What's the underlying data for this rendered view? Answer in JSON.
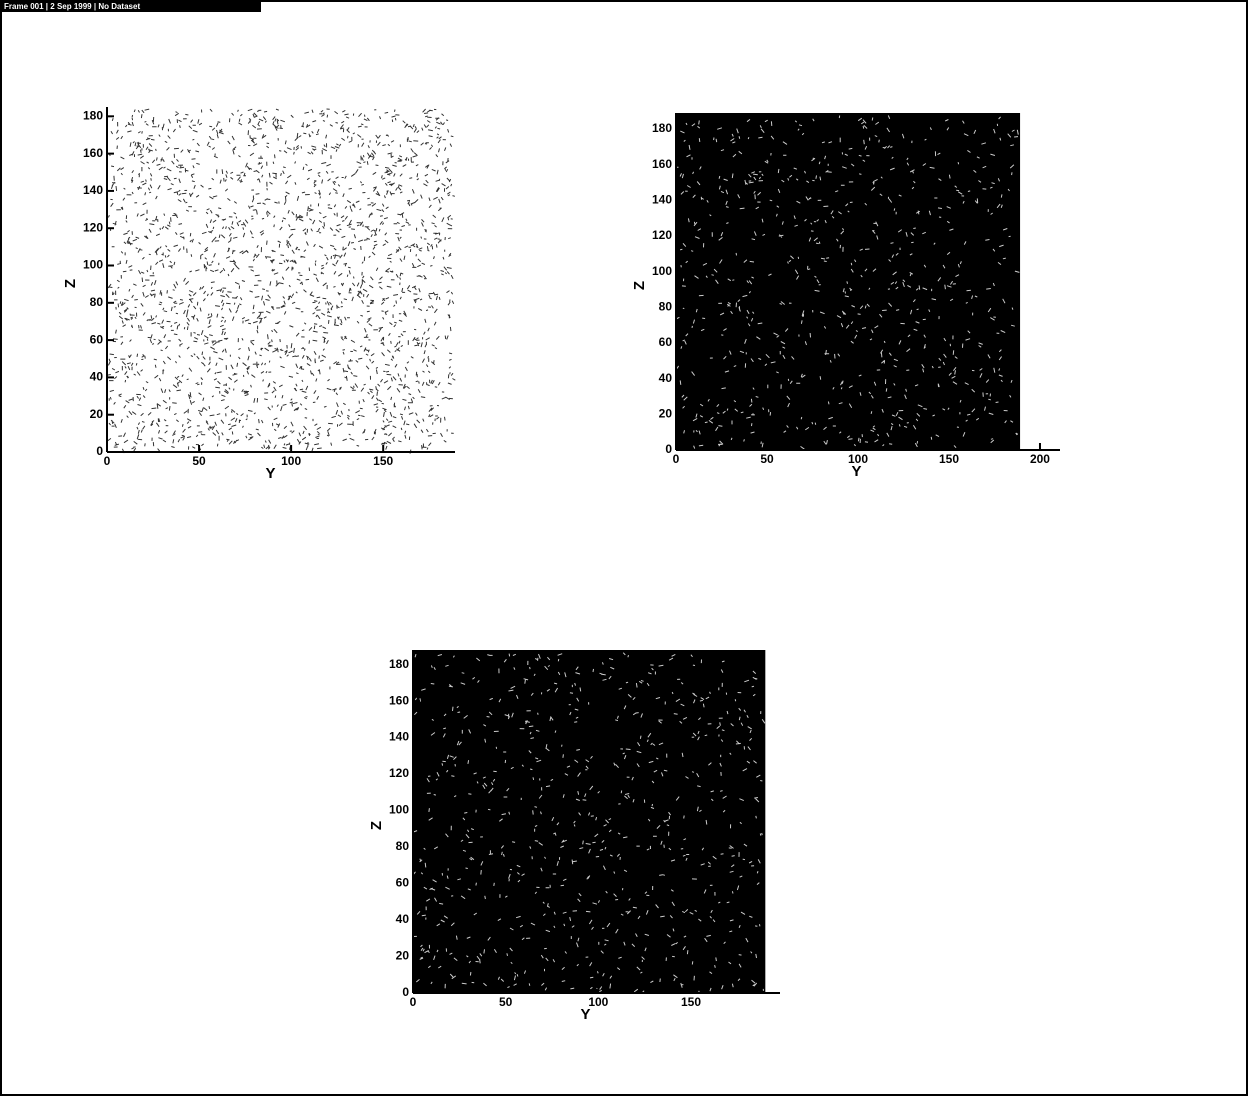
{
  "header": {
    "title": "Frame 001  |  2 Sep 1999  |  No Dataset"
  },
  "chart_data": [
    {
      "type": "vector",
      "xlabel": "Y",
      "ylabel": "Z",
      "background": "#ffffff",
      "color": "#000000",
      "xlim": [
        0,
        189
      ],
      "ylim": [
        0,
        185
      ],
      "xticks": [
        0,
        50,
        100,
        150
      ],
      "yticks": [
        0,
        20,
        40,
        60,
        80,
        100,
        120,
        140,
        160,
        180
      ]
    },
    {
      "type": "vector",
      "xlabel": "Y",
      "ylabel": "Z",
      "background": "#000000",
      "color": "#ffffff",
      "xlim": [
        0,
        211
      ],
      "ylim": [
        0,
        189
      ],
      "xticks": [
        0,
        50,
        100,
        150,
        200
      ],
      "yticks": [
        0,
        20,
        40,
        60,
        80,
        100,
        120,
        140,
        160,
        180
      ]
    },
    {
      "type": "vector",
      "xlabel": "Y",
      "ylabel": "Z",
      "background": "#000000",
      "color": "#ffffff",
      "xlim": [
        0,
        198
      ],
      "ylim": [
        0,
        188
      ],
      "xticks": [
        0,
        50,
        100,
        150
      ],
      "yticks": [
        0,
        20,
        40,
        60,
        80,
        100,
        120,
        140,
        160,
        180
      ]
    }
  ]
}
